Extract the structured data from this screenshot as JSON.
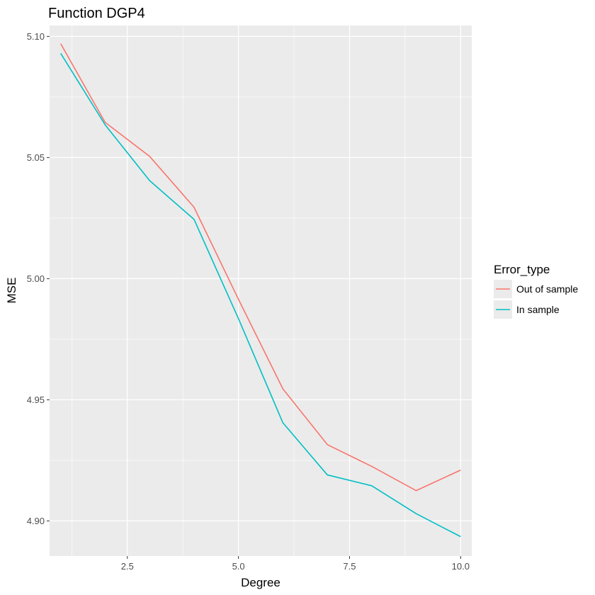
{
  "chart_data": {
    "type": "line",
    "title": "Function DGP4",
    "xlabel": "Degree",
    "ylabel": "MSE",
    "xlim": [
      0.75,
      10.25
    ],
    "ylim": [
      4.8855,
      5.1045
    ],
    "xticks": [
      2.5,
      5.0,
      7.5,
      10.0
    ],
    "xtick_labels": [
      "2.5",
      "5.0",
      "7.5",
      "10.0"
    ],
    "yticks": [
      4.9,
      4.95,
      5.0,
      5.05,
      5.1
    ],
    "ytick_labels": [
      "4.90",
      "4.95",
      "5.00",
      "5.05",
      "5.10"
    ],
    "grid": true,
    "legend": {
      "title": "Error_type",
      "placement": "right",
      "entries": [
        "Out of sample",
        "In sample"
      ]
    },
    "x": [
      1,
      2,
      3,
      4,
      5,
      6,
      7,
      8,
      9,
      10
    ],
    "series": [
      {
        "name": "Out of sample",
        "color": "#F8766D",
        "values": [
          5.097,
          5.0645,
          5.0505,
          5.0295,
          4.9915,
          4.9545,
          4.9315,
          4.9225,
          4.9125,
          4.921
        ]
      },
      {
        "name": "In sample",
        "color": "#00BFC4",
        "values": [
          5.093,
          5.0635,
          5.0405,
          5.0245,
          4.9835,
          4.9405,
          4.919,
          4.9145,
          4.903,
          4.8935
        ]
      }
    ]
  }
}
